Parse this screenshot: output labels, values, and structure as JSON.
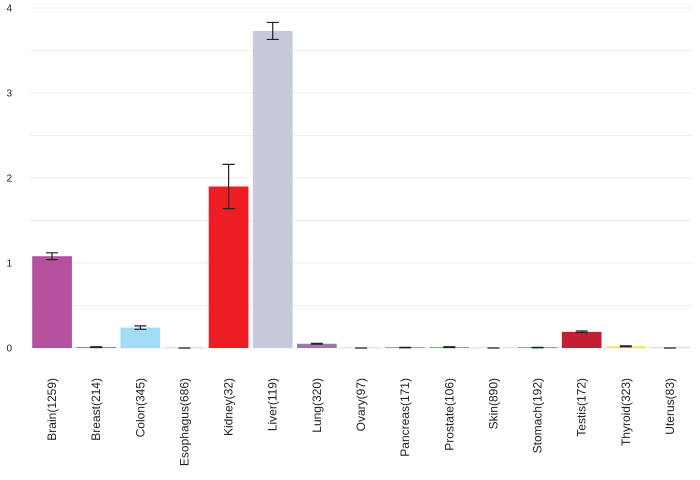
{
  "chart_data": {
    "type": "bar",
    "title": "",
    "xlabel": "",
    "ylabel": "",
    "ylim": [
      0,
      4
    ],
    "yticks": [
      0,
      1,
      2,
      3,
      4
    ],
    "grid": true,
    "categories": [
      "Brain(1259)",
      "Breast(214)",
      "Colon(345)",
      "Esophagus(686)",
      "Kidney(32)",
      "Liver(119)",
      "Lung(320)",
      "Ovary(97)",
      "Pancreas(171)",
      "Prostate(106)",
      "Skin(890)",
      "Stomach(192)",
      "Testis(172)",
      "Thyroid(323)",
      "Uterus(83)"
    ],
    "values": [
      1.08,
      0.01,
      0.24,
      0.0,
      1.9,
      3.73,
      0.05,
      0.0,
      0.005,
      0.01,
      0.0,
      0.005,
      0.19,
      0.02,
      0.0
    ],
    "errors": [
      0.04,
      0.005,
      0.02,
      0.0,
      0.26,
      0.1,
      0.005,
      0.0,
      0.002,
      0.005,
      0.0,
      0.002,
      0.01,
      0.005,
      0.0
    ],
    "colors": [
      "#b5519f",
      "#e85a9c",
      "#a2dcf7",
      "#d9d9d9",
      "#ee1c25",
      "#c8c9da",
      "#9b79ad",
      "#e0e0e0",
      "#8fa4c9",
      "#c98a6e",
      "#e0e0e0",
      "#29c3e8",
      "#c21f32",
      "#f2e93c",
      "#f5c6b5"
    ]
  }
}
